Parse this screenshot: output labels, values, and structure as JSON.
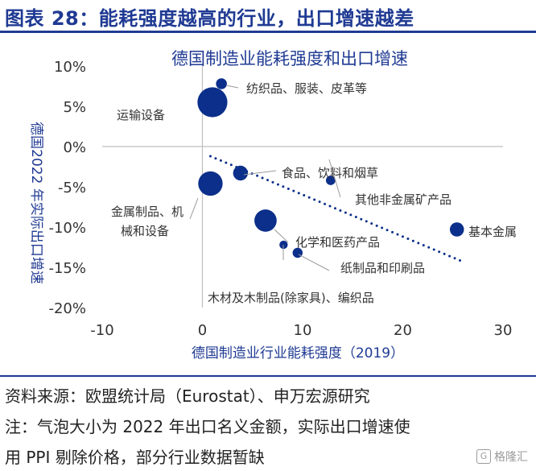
{
  "header": {
    "title": "图表 28：能耗强度越高的行业，出口增速越差"
  },
  "colors": {
    "accent": "#1f3a93",
    "bubble": "#0b2f8a",
    "axis": "#bfbfbf",
    "text": "#333333"
  },
  "chart_data": {
    "type": "scatter",
    "title": "德国制造业能耗强度和出口增速",
    "xlabel": "德国制造业行业能耗强度（2019）",
    "ylabel": "德国2022 年实际出口增速",
    "xlim": [
      -10,
      30
    ],
    "ylim": [
      -20,
      10
    ],
    "x_ticks": [
      -10,
      0,
      10,
      20,
      30
    ],
    "x_tick_labels": [
      "-10",
      "0",
      "10",
      "20",
      "30"
    ],
    "y_ticks": [
      10,
      5,
      0,
      -5,
      -10,
      -15,
      -20
    ],
    "y_tick_labels": [
      "10%",
      "5%",
      "0%",
      "-5%",
      "-10%",
      "-15%",
      "-20%"
    ],
    "grid": false,
    "bubble_size_note": "气泡大小为 2022 年出口名义金额",
    "points": [
      {
        "label": "纺织品、服装、皮革等",
        "x": 1.9,
        "y": 7.8,
        "size": 1.2
      },
      {
        "label": "运输设备",
        "x": 1.0,
        "y": 5.5,
        "size": 9.0
      },
      {
        "label": "食品、饮料和烟草",
        "x": 3.8,
        "y": -3.3,
        "size": 2.2
      },
      {
        "label": "其他非金属矿产品",
        "x": 12.8,
        "y": -4.2,
        "size": 0.9
      },
      {
        "label": "金属制品、机械和设备",
        "x": 0.8,
        "y": -4.6,
        "size": 6.0
      },
      {
        "label": "化学和医药产品",
        "x": 6.3,
        "y": -9.2,
        "size": 5.0
      },
      {
        "label": "基本金属",
        "x": 25.4,
        "y": -10.3,
        "size": 2.0
      },
      {
        "label": "纸制品和印刷品",
        "x": 9.5,
        "y": -13.2,
        "size": 1.0
      },
      {
        "label": "木材及木制品(除家具)、编织品",
        "x": 8.1,
        "y": -12.2,
        "size": 0.7
      }
    ],
    "trendline": {
      "x": [
        0.8,
        25.8
      ],
      "y": [
        -1.2,
        -14.2
      ],
      "style": "dotted"
    }
  },
  "footer": {
    "line1": "资料来源：欧盟统计局（Eurostat）、申万宏源研究",
    "line2": "注：气泡大小为 2022 年出口名义金额，实际出口增速使",
    "line3": "用 PPI 剔除价格，部分行业数据暂缺",
    "watermark": "格隆汇",
    "watermark_logo": "G"
  }
}
